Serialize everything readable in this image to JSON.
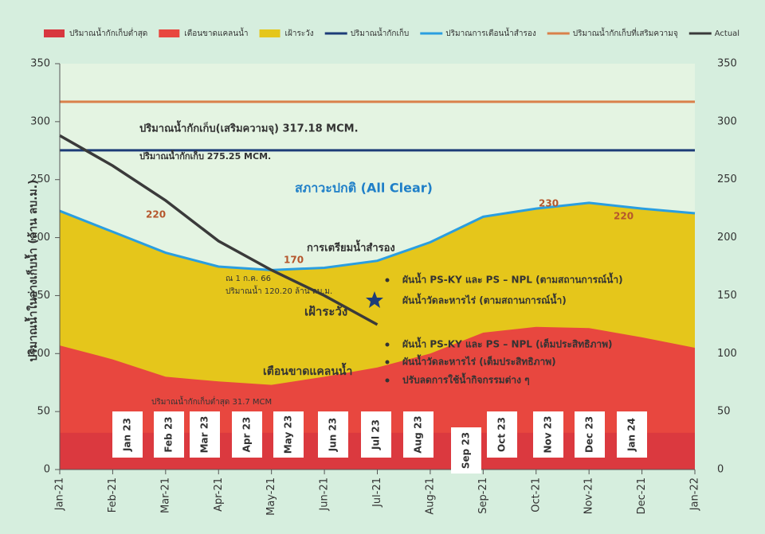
{
  "chart_data": {
    "type": "zone",
    "y_label": "ปริมาณน้ำในอ่างเก็บน้ำ (ล้าน ลบ.ม.)",
    "categories": [
      "Jan-21",
      "Feb-21",
      "Mar-21",
      "Apr-21",
      "May-21",
      "Jun-21",
      "Jul-21",
      "Aug-21",
      "Sep-21",
      "Oct-21",
      "Nov-21",
      "Dec-21",
      "Jan-22"
    ],
    "ylim": [
      0,
      350
    ],
    "yticks": [
      0,
      50,
      100,
      150,
      200,
      250,
      300,
      350
    ],
    "y2lim": [
      0,
      350
    ],
    "y2ticks": [
      0,
      50,
      100,
      150,
      200,
      250,
      300,
      350
    ],
    "series": [
      {
        "name": "ปริมาณน้ำกักเก็บต่ำสุด",
        "kind": "band",
        "color": "#d8373f",
        "value": 31.7
      },
      {
        "name": "เตือนขาดแคลนน้ำ",
        "kind": "area",
        "color": "#e8473f",
        "values": [
          107,
          95,
          80,
          76,
          73,
          80,
          88,
          100,
          118,
          123,
          122,
          114,
          105
        ]
      },
      {
        "name": "เฝ้าระวัง",
        "kind": "area",
        "color": "#e5c61b",
        "values": [
          223,
          205,
          187,
          175,
          172,
          174,
          180,
          196,
          218,
          225,
          230,
          225,
          221
        ]
      },
      {
        "name": "ปริมาณน้ำกักเก็บ",
        "kind": "hline",
        "color": "#1d3c78",
        "value": 275.25
      },
      {
        "name": "ปริมาณการเตือนน้ำสำรอง",
        "kind": "line",
        "color": "#2a9ee0",
        "values": [
          223,
          205,
          187,
          175,
          172,
          174,
          180,
          196,
          218,
          225,
          230,
          225,
          221
        ]
      },
      {
        "name": "ปริมาณน้ำกักเก็บที่เสริมความจุ",
        "kind": "hline",
        "color": "#d9804a",
        "value": 317.18
      },
      {
        "name": "Actual",
        "kind": "line",
        "color": "#3a3a3a",
        "values": [
          288,
          262,
          232,
          197,
          172,
          150,
          125,
          null,
          null,
          null,
          null,
          null,
          null
        ]
      }
    ],
    "annotations": [
      "ปริมาณน้ำกักเก็บ(เสริมความจุ) 317.18 MCM.",
      "ปริมาณน้ำกักเก็บ 275.25 MCM.",
      "สภาวะปกติ (All Clear)",
      "220",
      "170",
      "230",
      "220",
      "การเตรียมน้ำสำรอง",
      "เฝ้าระวัง",
      "เตือนขาดแคลนน้ำ",
      "ปริมาณน้ำกักเก็บต่ำสุด 31.7 MCM",
      "ณ 1 ก.ค. 66",
      "ปริมาณน้ำ 120.20 ล้าน ลบ.ม."
    ],
    "measures": [
      "ผันน้ำ PS-KY และ PS – NPL (ตามสถานการณ์น้ำ)",
      "ผันน้ำวัดละหารไร่ (ตามสถานการณ์น้ำ)",
      "ผันน้ำ PS-KY และ PS – NPL (เต็มประสิทธิภาพ)",
      "ผันน้ำวัดละหารไร่ (เต็มประสิทธิภาพ)",
      "ปรับลดการใช้น้ำกิจกรรมต่าง ๆ"
    ],
    "month_boxes": [
      "Jan 23",
      "Feb 23",
      "Mar 23",
      "Apr 23",
      "May 23",
      "Jun 23",
      "Jul 23",
      "Aug 23",
      "Sep 23",
      "Oct 23",
      "Nov 23",
      "Dec 23",
      "Jan 24"
    ]
  }
}
